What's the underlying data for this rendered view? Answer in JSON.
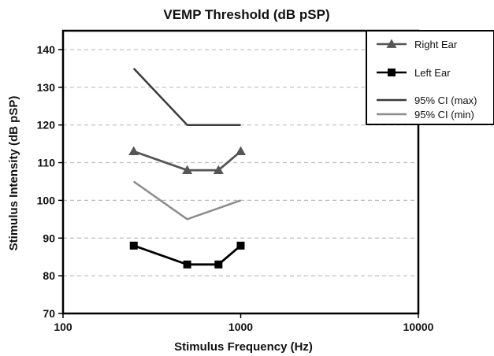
{
  "chart_data": {
    "type": "line",
    "title": "VEMP Threshold (dB pSP)",
    "xlabel": "Stimulus Frequency (Hz)",
    "ylabel": "Stimulus Intensity (dB pSP)",
    "x_scale": "log",
    "xlim": [
      100,
      10000
    ],
    "ylim": [
      70,
      145
    ],
    "x_ticks": [
      "100",
      "1000",
      "10000"
    ],
    "y_ticks": [
      "70",
      "80",
      "90",
      "100",
      "110",
      "120",
      "130",
      "140"
    ],
    "grid": "horizontal dashed",
    "legend_position": "top-right",
    "series": [
      {
        "name": "Right Ear",
        "color": "#555555",
        "marker": "triangle",
        "x": [
          250,
          500,
          750,
          1000
        ],
        "y": [
          113,
          108,
          108,
          113
        ]
      },
      {
        "name": "Left Ear",
        "color": "#000000",
        "marker": "square",
        "x": [
          250,
          500,
          750,
          1000
        ],
        "y": [
          88,
          83,
          83,
          88
        ]
      },
      {
        "name": "95% CI (max)",
        "color": "#3a3a3a",
        "marker": "none",
        "x": [
          250,
          500,
          1000
        ],
        "y": [
          135,
          120,
          120
        ]
      },
      {
        "name": "95% CI (min)",
        "color": "#8c8c8c",
        "marker": "none",
        "x": [
          250,
          500,
          1000
        ],
        "y": [
          105,
          95,
          100
        ]
      }
    ]
  }
}
